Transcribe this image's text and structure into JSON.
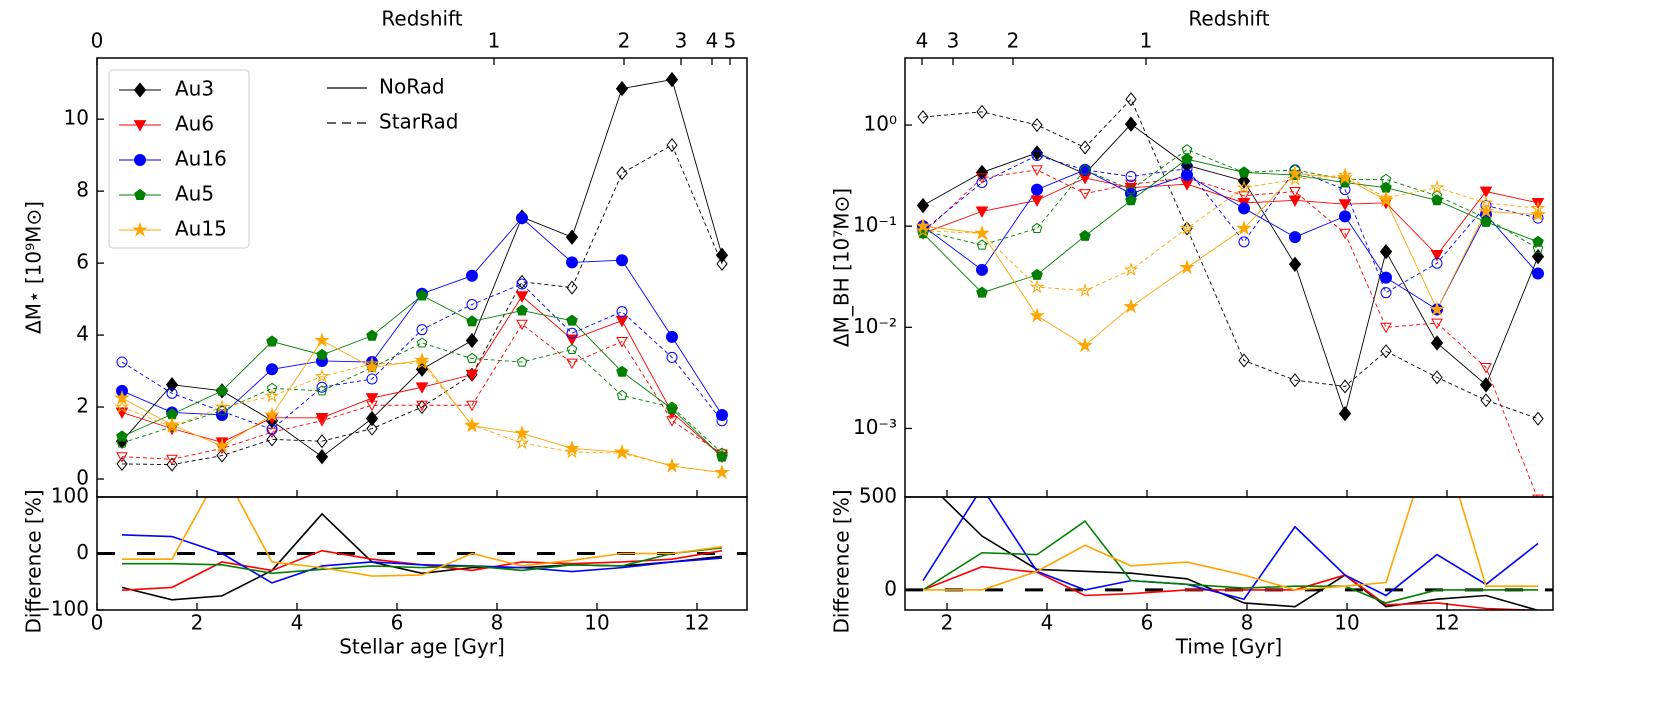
{
  "chart_data": [
    {
      "type": "line",
      "title": "Redshift",
      "xlabel": "Stellar age [Gyr]",
      "ylabel": "ΔM⋆ [10⁹M⊙]",
      "x": [
        0.5,
        1.5,
        2.5,
        3.5,
        4.5,
        5.5,
        6.5,
        7.5,
        8.5,
        9.5,
        10.5,
        11.5,
        12.5
      ],
      "xlim": [
        0,
        13
      ],
      "xticks": [
        0,
        2,
        4,
        6,
        8,
        10,
        12
      ],
      "x2ticks": [
        {
          "value": 0,
          "label": "0"
        },
        {
          "value": 7.94,
          "label": "1"
        },
        {
          "value": 10.54,
          "label": "2"
        },
        {
          "value": 11.68,
          "label": "3"
        },
        {
          "value": 12.3,
          "label": "4"
        },
        {
          "value": 12.66,
          "label": "5"
        }
      ],
      "ylim": [
        -0.5,
        11.7
      ],
      "yticks": [
        0,
        2,
        4,
        6,
        8,
        10
      ],
      "yscale": "linear",
      "legend": {
        "runs": [
          "NoRad",
          "StarRad"
        ],
        "loc": "upper left"
      },
      "series": [
        {
          "name": "Au3",
          "color": "#000000",
          "marker": "diamond",
          "values": [
            [
              1.05,
              2.62,
              2.45,
              1.62,
              0.62,
              1.68,
              3.05,
              3.85,
              7.28,
              6.72,
              10.85,
              11.1,
              6.22
            ],
            [
              0.42,
              0.4,
              0.65,
              1.1,
              1.05,
              1.4,
              2.0,
              2.9,
              5.48,
              5.32,
              8.5,
              9.28,
              5.98
            ]
          ]
        },
        {
          "name": "Au6",
          "color": "#ff0000",
          "marker": "triangle",
          "values": [
            [
              1.85,
              1.4,
              1.02,
              1.7,
              1.7,
              2.25,
              2.55,
              2.9,
              5.08,
              3.88,
              4.4,
              1.85,
              0.62
            ],
            [
              0.62,
              0.55,
              0.85,
              1.3,
              1.62,
              2.05,
              2.05,
              2.05,
              4.3,
              3.22,
              3.82,
              1.62,
              0.7
            ]
          ]
        },
        {
          "name": "Au16",
          "color": "#0000ff",
          "marker": "circle",
          "values": [
            [
              2.45,
              1.85,
              1.78,
              3.05,
              3.28,
              3.25,
              5.15,
              5.65,
              7.25,
              6.02,
              6.08,
              3.95,
              1.78
            ],
            [
              3.25,
              2.38,
              1.88,
              1.38,
              2.55,
              2.78,
              4.15,
              4.85,
              5.42,
              4.05,
              4.65,
              3.38,
              1.62
            ]
          ]
        },
        {
          "name": "Au5",
          "color": "#008000",
          "marker": "pentagon",
          "values": [
            [
              1.18,
              1.8,
              2.45,
              3.82,
              3.45,
              3.98,
              5.1,
              4.38,
              4.68,
              4.4,
              2.98,
              1.95,
              0.62
            ],
            [
              1.0,
              1.45,
              1.9,
              2.52,
              2.45,
              3.1,
              3.78,
              3.35,
              3.25,
              3.6,
              2.32,
              2.0,
              0.72
            ]
          ]
        },
        {
          "name": "Au15",
          "color": "#ffa500",
          "marker": "star",
          "values": [
            [
              2.25,
              1.5,
              0.92,
              1.78,
              3.85,
              3.1,
              3.3,
              1.48,
              1.27,
              0.85,
              0.75,
              0.36,
              0.18
            ],
            [
              2.0,
              1.45,
              2.0,
              2.3,
              2.85,
              3.2,
              3.22,
              1.5,
              1.0,
              0.75,
              0.72,
              0.36,
              0.18
            ]
          ]
        }
      ],
      "difference": {
        "ylabel": "Difference [%]",
        "ylim": [
          -100,
          100
        ],
        "yticks": [
          {
            "value": -100,
            "label": "−100"
          },
          0,
          100
        ],
        "values": [
          [
            -60,
            -82,
            -75,
            -30,
            70,
            -15,
            -35,
            -25,
            -25,
            -20,
            -22,
            -15,
            -5
          ],
          [
            -65,
            -60,
            -15,
            -30,
            5,
            -10,
            -20,
            -30,
            -15,
            -18,
            -15,
            -10,
            5
          ],
          [
            33,
            30,
            0,
            -52,
            -22,
            -15,
            -20,
            -22,
            -25,
            -32,
            -25,
            -15,
            -8
          ],
          [
            -18,
            -18,
            -20,
            -35,
            -28,
            -22,
            -25,
            -22,
            -30,
            -20,
            -22,
            0,
            10
          ],
          [
            -10,
            -10,
            150,
            -15,
            -25,
            -40,
            -38,
            0,
            -22,
            -12,
            0,
            0,
            12
          ]
        ]
      }
    },
    {
      "type": "line",
      "title": "Redshift",
      "xlabel": "Time [Gyr]",
      "ylabel": "ΔM_BH [10⁷M⊙]",
      "x": [
        1.52,
        2.7,
        3.8,
        4.76,
        5.68,
        6.8,
        7.94,
        8.96,
        9.96,
        10.78,
        11.8,
        12.78,
        13.82
      ],
      "xlim": [
        1.16,
        14.12
      ],
      "xticks": [
        2,
        4,
        6,
        8,
        10,
        12
      ],
      "x2ticks": [
        {
          "value": 1.5,
          "label": "4"
        },
        {
          "value": 2.12,
          "label": "3"
        },
        {
          "value": 3.32,
          "label": "2"
        },
        {
          "value": 5.98,
          "label": "1"
        }
      ],
      "ylim": [
        0.00021,
        4.6
      ],
      "yscale": "log",
      "yticks": [
        {
          "value": 0.001,
          "label": "10⁻³"
        },
        {
          "value": 0.01,
          "label": "10⁻²"
        },
        {
          "value": 0.1,
          "label": "10⁻¹"
        },
        {
          "value": 1,
          "label": "10⁰"
        }
      ],
      "series": [
        {
          "color": "#000000",
          "marker": "diamond",
          "values": [
            [
              0.16,
              0.34,
              0.53,
              0.33,
              1.02,
              0.4,
              0.28,
              0.042,
              0.0014,
              0.056,
              0.007,
              0.0027,
              0.05
            ],
            [
              1.2,
              1.35,
              1.0,
              0.6,
              1.8,
              0.095,
              0.0047,
              0.003,
              0.0026,
              0.0058,
              0.0032,
              0.0019,
              0.00125
            ]
          ]
        },
        {
          "color": "#ff0000",
          "marker": "triangle",
          "values": [
            [
              0.085,
              0.14,
              0.18,
              0.3,
              0.24,
              0.26,
              0.17,
              0.18,
              0.165,
              0.17,
              0.052,
              0.22,
              0.17
            ],
            [
              0.085,
              0.3,
              0.36,
              0.21,
              0.26,
              0.3,
              0.2,
              0.22,
              0.085,
              0.01,
              0.011,
              0.004,
              0.0002
            ]
          ]
        },
        {
          "color": "#0000ff",
          "marker": "circle",
          "values": [
            [
              0.1,
              0.037,
              0.23,
              0.36,
              0.21,
              0.32,
              0.15,
              0.078,
              0.125,
              0.031,
              0.015,
              0.13,
              0.034
            ],
            [
              0.09,
              0.27,
              0.5,
              0.36,
              0.31,
              0.37,
              0.07,
              0.36,
              0.23,
              0.022,
              0.043,
              0.16,
              0.12
            ]
          ]
        },
        {
          "color": "#008000",
          "marker": "pentagon",
          "values": [
            [
              0.085,
              0.022,
              0.033,
              0.08,
              0.18,
              0.46,
              0.34,
              0.32,
              0.27,
              0.24,
              0.18,
              0.11,
              0.07
            ],
            [
              0.09,
              0.065,
              0.095,
              0.36,
              0.23,
              0.57,
              0.34,
              0.36,
              0.29,
              0.29,
              0.2,
              0.12,
              0.06
            ]
          ]
        },
        {
          "color": "#ffa500",
          "marker": "star",
          "values": [
            [
              0.1,
              0.085,
              0.013,
              0.0066,
              0.016,
              0.039,
              0.095,
              0.33,
              0.3,
              0.18,
              0.015,
              0.14,
              0.13
            ],
            [
              0.09,
              0.085,
              0.025,
              0.023,
              0.037,
              0.095,
              0.24,
              0.29,
              0.32,
              0.19,
              0.24,
              0.17,
              0.15
            ]
          ]
        }
      ],
      "difference": {
        "ylabel": "Difference [%]",
        "ylim": [
          -108,
          500
        ],
        "yticks": [
          0,
          500
        ],
        "values": [
          [
            600,
            290,
            110,
            100,
            90,
            60,
            -70,
            -90,
            80,
            -90,
            -50,
            -30,
            -110
          ],
          [
            0,
            125,
            95,
            -30,
            -20,
            0,
            0,
            0,
            80,
            -80,
            -70,
            -100,
            -110
          ],
          [
            50,
            550,
            100,
            0,
            50,
            30,
            -50,
            340,
            80,
            -30,
            190,
            30,
            250
          ],
          [
            0,
            200,
            190,
            370,
            50,
            30,
            10,
            20,
            20,
            -70,
            0,
            0,
            0
          ],
          [
            0,
            0,
            100,
            240,
            130,
            150,
            80,
            0,
            20,
            40,
            900,
            20,
            20
          ]
        ]
      }
    }
  ]
}
